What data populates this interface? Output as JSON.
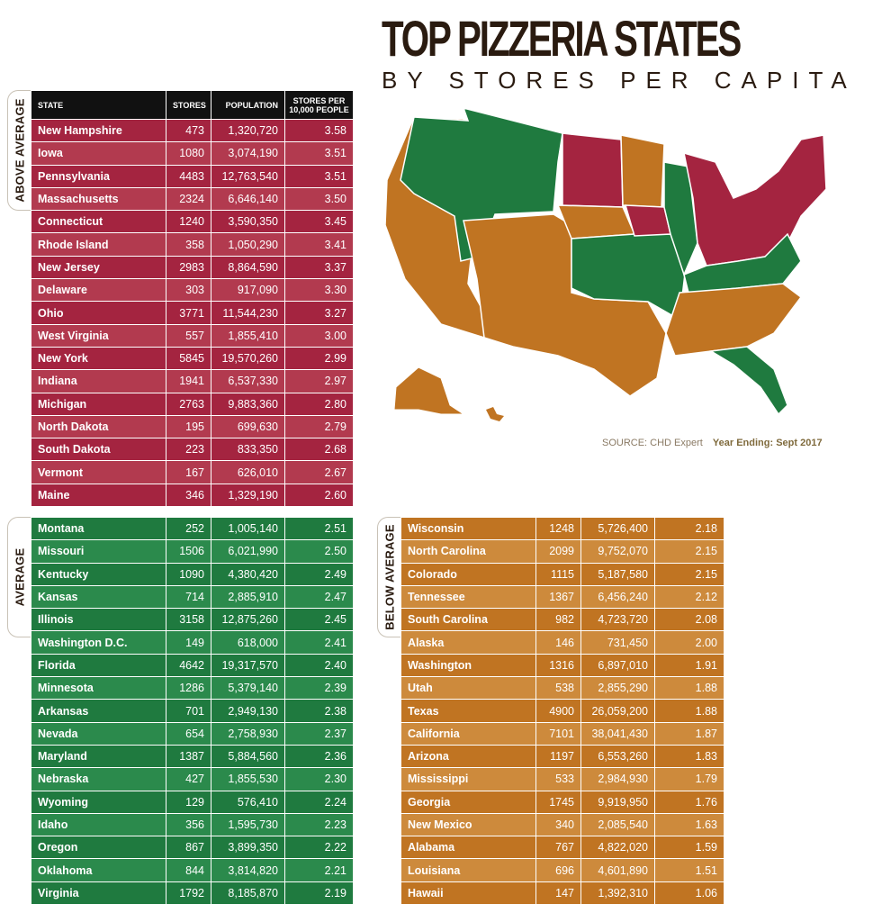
{
  "title": {
    "main": "TOP PIZZERIA STATES",
    "sub": "BY STORES PER CAPITA"
  },
  "source": {
    "text": "SOURCE: CHD Expert",
    "year": "Year Ending: Sept 2017"
  },
  "colors": {
    "above": "#a42440",
    "average": "#1f7a3f",
    "below": "#c07422",
    "header": "#111111",
    "title": "#2a1b10"
  },
  "table_headers": {
    "state": "STATE",
    "stores": "STORES",
    "population": "POPULATION",
    "per_line1": "STORES PER",
    "per_line2": "10,000 PEOPLE"
  },
  "groups": {
    "above": {
      "label": "ABOVE AVERAGE"
    },
    "average": {
      "label": "AVERAGE"
    },
    "below": {
      "label": "BELOW AVERAGE"
    }
  },
  "chart_data": {
    "type": "table",
    "columns": [
      "STATE",
      "STORES",
      "POPULATION",
      "STORES PER 10,000 PEOPLE"
    ],
    "groups": [
      {
        "name": "ABOVE AVERAGE",
        "rows": [
          [
            "New Hampshire",
            "473",
            "1,320,720",
            "3.58"
          ],
          [
            "Iowa",
            "1080",
            "3,074,190",
            "3.51"
          ],
          [
            "Pennsylvania",
            "4483",
            "12,763,540",
            "3.51"
          ],
          [
            "Massachusetts",
            "2324",
            "6,646,140",
            "3.50"
          ],
          [
            "Connecticut",
            "1240",
            "3,590,350",
            "3.45"
          ],
          [
            "Rhode Island",
            "358",
            "1,050,290",
            "3.41"
          ],
          [
            "New Jersey",
            "2983",
            "8,864,590",
            "3.37"
          ],
          [
            "Delaware",
            "303",
            "917,090",
            "3.30"
          ],
          [
            "Ohio",
            "3771",
            "11,544,230",
            "3.27"
          ],
          [
            "West Virginia",
            "557",
            "1,855,410",
            "3.00"
          ],
          [
            "New York",
            "5845",
            "19,570,260",
            "2.99"
          ],
          [
            "Indiana",
            "1941",
            "6,537,330",
            "2.97"
          ],
          [
            "Michigan",
            "2763",
            "9,883,360",
            "2.80"
          ],
          [
            "North Dakota",
            "195",
            "699,630",
            "2.79"
          ],
          [
            "South Dakota",
            "223",
            "833,350",
            "2.68"
          ],
          [
            "Vermont",
            "167",
            "626,010",
            "2.67"
          ],
          [
            "Maine",
            "346",
            "1,329,190",
            "2.60"
          ]
        ]
      },
      {
        "name": "AVERAGE",
        "rows": [
          [
            "Montana",
            "252",
            "1,005,140",
            "2.51"
          ],
          [
            "Missouri",
            "1506",
            "6,021,990",
            "2.50"
          ],
          [
            "Kentucky",
            "1090",
            "4,380,420",
            "2.49"
          ],
          [
            "Kansas",
            "714",
            "2,885,910",
            "2.47"
          ],
          [
            "Illinois",
            "3158",
            "12,875,260",
            "2.45"
          ],
          [
            "Washington D.C.",
            "149",
            "618,000",
            "2.41"
          ],
          [
            "Florida",
            "4642",
            "19,317,570",
            "2.40"
          ],
          [
            "Minnesota",
            "1286",
            "5,379,140",
            "2.39"
          ],
          [
            "Arkansas",
            "701",
            "2,949,130",
            "2.38"
          ],
          [
            "Nevada",
            "654",
            "2,758,930",
            "2.37"
          ],
          [
            "Maryland",
            "1387",
            "5,884,560",
            "2.36"
          ],
          [
            "Nebraska",
            "427",
            "1,855,530",
            "2.30"
          ],
          [
            "Wyoming",
            "129",
            "576,410",
            "2.24"
          ],
          [
            "Idaho",
            "356",
            "1,595,730",
            "2.23"
          ],
          [
            "Oregon",
            "867",
            "3,899,350",
            "2.22"
          ],
          [
            "Oklahoma",
            "844",
            "3,814,820",
            "2.21"
          ],
          [
            "Virginia",
            "1792",
            "8,185,870",
            "2.19"
          ]
        ]
      },
      {
        "name": "BELOW AVERAGE",
        "rows": [
          [
            "Wisconsin",
            "1248",
            "5,726,400",
            "2.18"
          ],
          [
            "North Carolina",
            "2099",
            "9,752,070",
            "2.15"
          ],
          [
            "Colorado",
            "1115",
            "5,187,580",
            "2.15"
          ],
          [
            "Tennessee",
            "1367",
            "6,456,240",
            "2.12"
          ],
          [
            "South Carolina",
            "982",
            "4,723,720",
            "2.08"
          ],
          [
            "Alaska",
            "146",
            "731,450",
            "2.00"
          ],
          [
            "Washington",
            "1316",
            "6,897,010",
            "1.91"
          ],
          [
            "Utah",
            "538",
            "2,855,290",
            "1.88"
          ],
          [
            "Texas",
            "4900",
            "26,059,200",
            "1.88"
          ],
          [
            "California",
            "7101",
            "38,041,430",
            "1.87"
          ],
          [
            "Arizona",
            "1197",
            "6,553,260",
            "1.83"
          ],
          [
            "Mississippi",
            "533",
            "2,984,930",
            "1.79"
          ],
          [
            "Georgia",
            "1745",
            "9,919,950",
            "1.76"
          ],
          [
            "New Mexico",
            "340",
            "2,085,540",
            "1.63"
          ],
          [
            "Alabama",
            "767",
            "4,822,020",
            "1.59"
          ],
          [
            "Louisiana",
            "696",
            "4,601,890",
            "1.51"
          ],
          [
            "Hawaii",
            "147",
            "1,392,310",
            "1.06"
          ]
        ]
      }
    ]
  }
}
